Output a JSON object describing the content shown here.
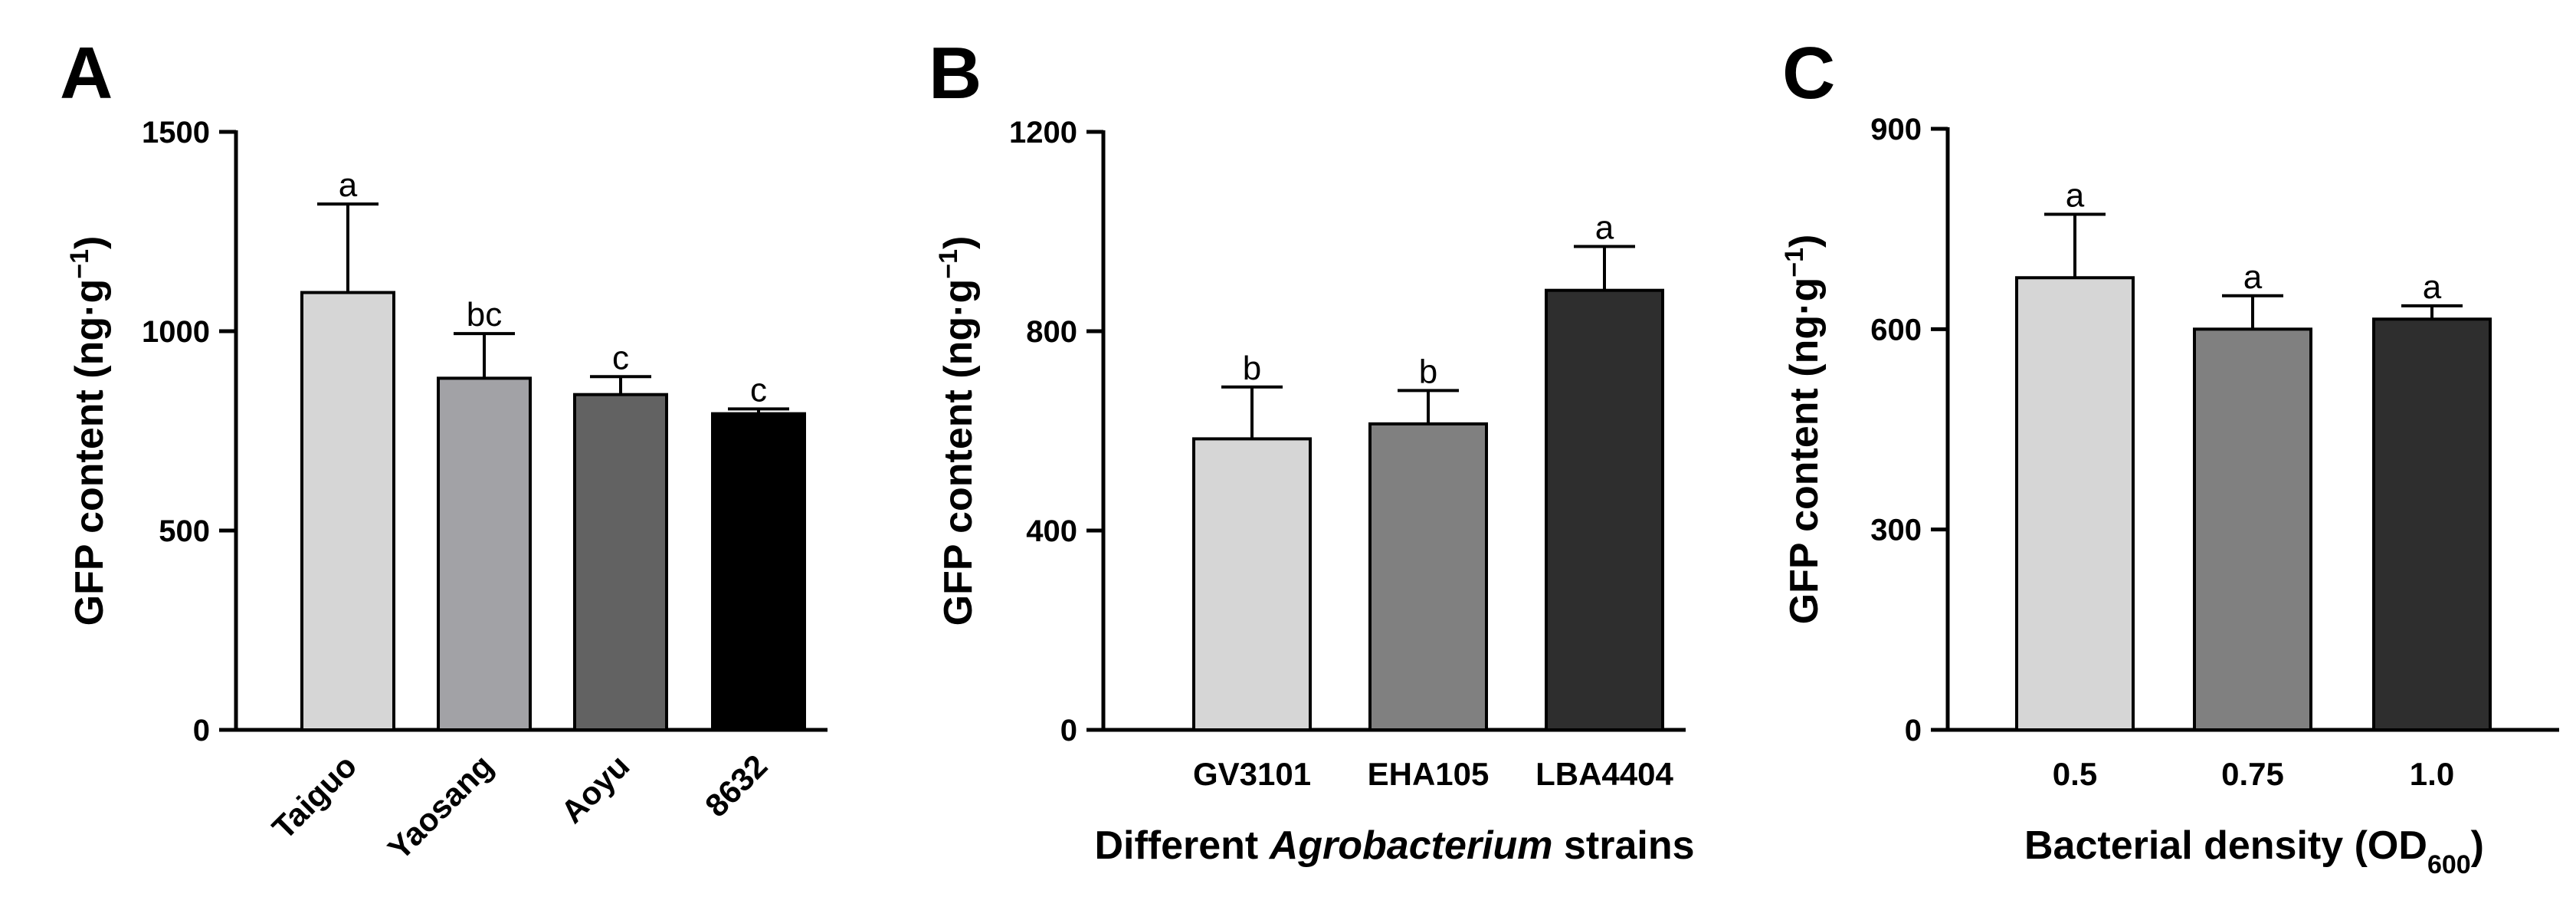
{
  "chart_data": [
    {
      "type": "bar",
      "panel": "A",
      "categories": [
        "Taiguo",
        "Yaosang",
        "Aoyu",
        "8632"
      ],
      "values": [
        1097,
        882,
        841,
        793
      ],
      "errors": [
        222,
        112,
        45,
        12
      ],
      "significance": [
        "a",
        "bc",
        "c",
        "c"
      ],
      "colors": [
        "#d6d6d6",
        "#a2a2a6",
        "#626262",
        "#000000"
      ],
      "title": "",
      "xlabel": "",
      "xlabel_italic": "",
      "xlabel_post": "",
      "xlabel_sub": "",
      "xlabel_close": "",
      "ylabel": "GFP content (ng·g",
      "ylabel_sup": "−1",
      "ylabel_close": ")",
      "ylim": [
        0,
        1500
      ],
      "yticks": [
        0,
        500,
        1000,
        1500
      ],
      "rotated_labels": true,
      "grid": false
    },
    {
      "type": "bar",
      "panel": "B",
      "categories": [
        "GV3101",
        "EHA105",
        "LBA4404"
      ],
      "values": [
        584,
        614,
        882
      ],
      "errors": [
        104,
        67,
        88
      ],
      "significance": [
        "b",
        "b",
        "a"
      ],
      "colors": [
        "#d6d6d6",
        "#808080",
        "#2e2e2e"
      ],
      "title": "",
      "xlabel": "Different ",
      "xlabel_italic": "Agrobacterium",
      "xlabel_post": " strains",
      "xlabel_sub": "",
      "xlabel_close": "",
      "ylabel": "GFP content (ng·g",
      "ylabel_sup": "−1",
      "ylabel_close": ")",
      "ylim": [
        0,
        1200
      ],
      "yticks": [
        0,
        400,
        800,
        1200
      ],
      "rotated_labels": false,
      "grid": false
    },
    {
      "type": "bar",
      "panel": "C",
      "categories": [
        "0.5",
        "0.75",
        "1.0"
      ],
      "values": [
        677,
        600,
        615
      ],
      "errors": [
        95,
        50,
        20
      ],
      "significance": [
        "a",
        "a",
        "a"
      ],
      "colors": [
        "#d6d6d6",
        "#808080",
        "#2e2e2e"
      ],
      "title": "",
      "xlabel": "Bacterial density (OD",
      "xlabel_italic": "",
      "xlabel_post": "",
      "xlabel_sub": "600",
      "xlabel_close": ")",
      "ylabel": "GFP content (ng·g",
      "ylabel_sup": "−1",
      "ylabel_close": ")",
      "ylim": [
        0,
        900
      ],
      "yticks": [
        0,
        300,
        600,
        900
      ],
      "rotated_labels": false,
      "grid": false
    }
  ]
}
